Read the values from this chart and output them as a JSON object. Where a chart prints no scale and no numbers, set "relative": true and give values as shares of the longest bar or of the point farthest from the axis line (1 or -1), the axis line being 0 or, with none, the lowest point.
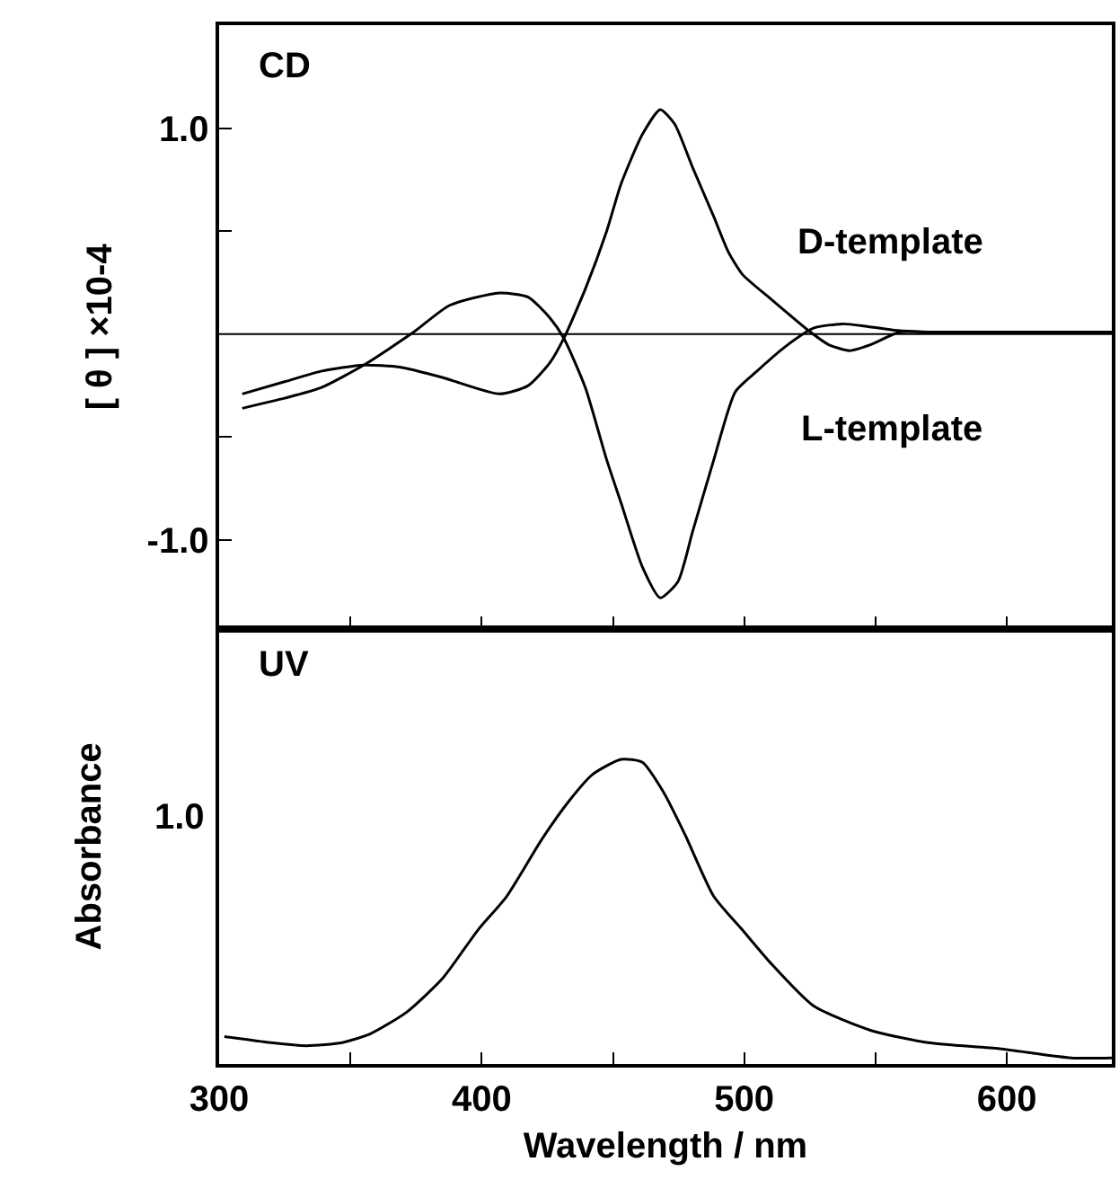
{
  "chart_data": [
    {
      "type": "line",
      "title": "CD",
      "ylabel": "[ θ ] ×10-4",
      "xlim": [
        300,
        640
      ],
      "ylim": [
        -1.43,
        1.5
      ],
      "xticks": [
        300,
        {
          "value": 350,
          "label": null
        },
        400,
        {
          "value": 450,
          "label": null
        },
        500,
        {
          "value": 550,
          "label": null
        },
        600
      ],
      "yticks": [
        {
          "value": 1.0,
          "label": "1.0"
        },
        {
          "value": 0.5,
          "label": null
        },
        {
          "value": -0.5,
          "label": null
        },
        {
          "value": -1.0,
          "label": "-1.0"
        }
      ],
      "tick_labels": "y",
      "grid": false,
      "legend": false,
      "marker": "none",
      "line_style": "solid",
      "ref_lines": [
        {
          "axis": "y",
          "value": 0,
          "color": "#000000"
        }
      ],
      "series": [
        {
          "name": "D-template",
          "color": "#000000",
          "x": [
            308.8,
            325.2,
            338.8,
            355.1,
            368.7,
            385.0,
            406.8,
            417.7,
            425.9,
            431.3,
            439.5,
            447.6,
            453.1,
            461.2,
            468.0,
            473.5,
            480.3,
            488.4,
            493.9,
            499.3,
            510.2,
            525.2,
            532.0,
            540.1,
            548.3,
            559.2,
            570.1,
            640
          ],
          "values": [
            -0.29,
            -0.23,
            -0.18,
            -0.15,
            -0.16,
            -0.21,
            -0.29,
            -0.25,
            -0.14,
            -0.02,
            0.22,
            0.5,
            0.73,
            0.97,
            1.09,
            1.02,
            0.81,
            0.57,
            0.4,
            0.29,
            0.17,
            0.01,
            -0.05,
            -0.08,
            -0.05,
            0.01,
            0.01,
            0.01
          ]
        },
        {
          "name": "L-template",
          "color": "#000000",
          "x": [
            308.8,
            325.2,
            338.8,
            355.1,
            374.1,
            387.8,
            406.8,
            417.7,
            425.9,
            431.3,
            439.5,
            447.6,
            453.1,
            461.2,
            468.0,
            474.8,
            480.3,
            488.4,
            496.6,
            504.8,
            515.7,
            526.6,
            537.4,
            545.6,
            556.5,
            570.1,
            640
          ],
          "values": [
            -0.36,
            -0.31,
            -0.26,
            -0.15,
            0.01,
            0.14,
            0.2,
            0.18,
            0.08,
            -0.02,
            -0.26,
            -0.61,
            -0.82,
            -1.13,
            -1.28,
            -1.2,
            -0.96,
            -0.61,
            -0.28,
            -0.18,
            -0.06,
            0.03,
            0.05,
            0.04,
            0.02,
            0.01,
            0.01
          ]
        }
      ]
    },
    {
      "type": "line",
      "title": "UV",
      "xlabel": "Wavelength / nm",
      "ylabel": "Absorbance",
      "xlim": [
        300,
        640
      ],
      "relative": true,
      "annotations": [
        "1.0"
      ],
      "xticks": [
        300,
        {
          "value": 350,
          "label": null
        },
        400,
        {
          "value": 450,
          "label": null
        },
        500,
        {
          "value": 550,
          "label": null
        },
        600
      ],
      "grid": false,
      "legend": false,
      "marker": "none",
      "line_style": "solid",
      "series": [
        {
          "color": "#000000",
          "x": [
            302.0,
            319.7,
            333.3,
            346.9,
            357.8,
            371.4,
            385.0,
            398.6,
            409.5,
            423.1,
            433.9,
            442.2,
            453.1,
            461.2,
            469.4,
            477.6,
            488.4,
            499.3,
            510.2,
            526.5,
            548.3,
            570.1,
            597.3,
            624.5,
            640
          ],
          "values": [
            0.09,
            0.07,
            0.06,
            0.07,
            0.1,
            0.17,
            0.28,
            0.44,
            0.55,
            0.74,
            0.87,
            0.95,
            1.0,
            0.99,
            0.89,
            0.75,
            0.55,
            0.44,
            0.33,
            0.19,
            0.11,
            0.07,
            0.05,
            0.02,
            0.02
          ]
        }
      ]
    }
  ]
}
